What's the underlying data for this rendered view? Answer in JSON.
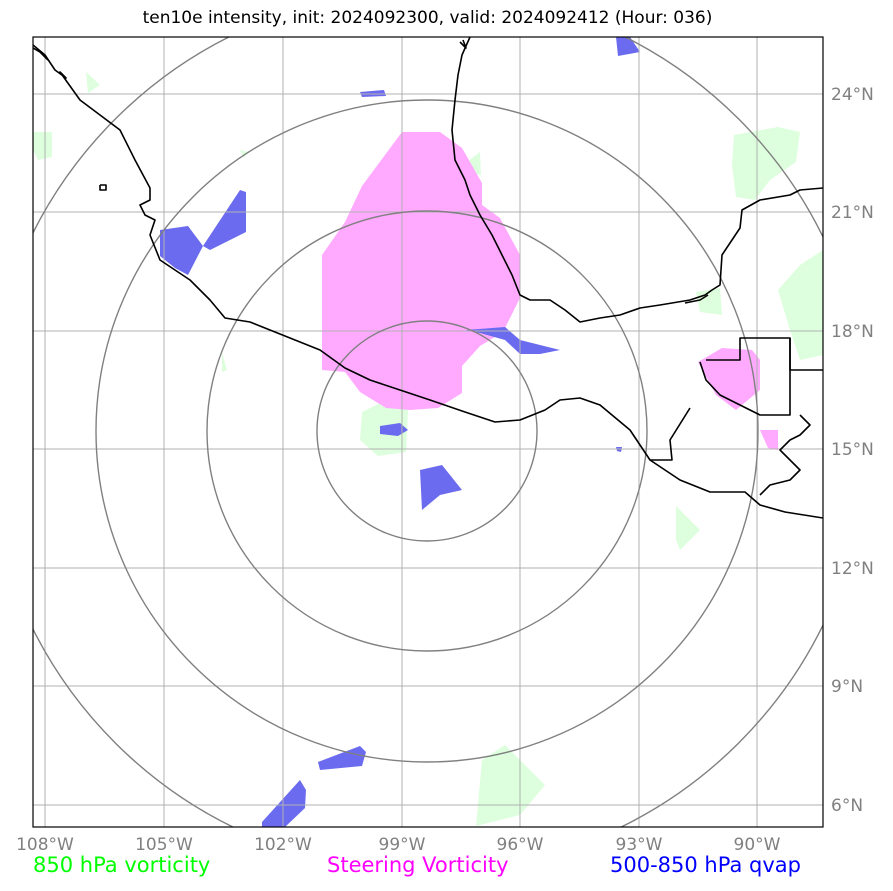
{
  "title": "ten10e intensity, init: 2024092300, valid: 2024092412 (Hour: 036)",
  "legend": [
    {
      "label": "850 hPa vorticity",
      "color": "#00ff00"
    },
    {
      "label": "Steering Vorticity",
      "color": "#ff00ff"
    },
    {
      "label": "500-850 hPa qvap",
      "color": "#0000ff"
    }
  ],
  "lon_ticks": [
    "108°W",
    "105°W",
    "102°W",
    "99°W",
    "96°W",
    "93°W",
    "90°W"
  ],
  "lat_ticks": [
    "24°N",
    "21°N",
    "18°N",
    "15°N",
    "12°N",
    "9°N",
    "6°N"
  ],
  "range_rings": 4,
  "colors": {
    "vorticity_850": "#ddffdd",
    "steering_vorticity": "#ffaaff",
    "qvap": "#6b6bef",
    "grid": "#b0b0b0",
    "ring": "#808080",
    "coast": "#000000"
  }
}
